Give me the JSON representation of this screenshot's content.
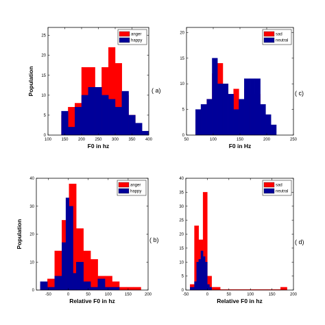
{
  "chart_data": [
    {
      "type": "bar",
      "panel_label": "( a)",
      "xlabel": "F0 in hz",
      "ylabel": "Population",
      "xlim": [
        100,
        400
      ],
      "ylim": [
        0,
        27
      ],
      "xticks": [
        100,
        150,
        200,
        250,
        300,
        350,
        400
      ],
      "yticks": [
        0,
        5,
        10,
        15,
        20,
        25
      ],
      "legend_position": "top-right",
      "series": [
        {
          "name": "anger",
          "color": "#ff0000",
          "bins": [
            [
              140,
              160,
              5
            ],
            [
              160,
              180,
              7
            ],
            [
              180,
              200,
              8
            ],
            [
              200,
              220,
              17
            ],
            [
              220,
              240,
              17
            ],
            [
              240,
              260,
              11
            ],
            [
              260,
              280,
              17
            ],
            [
              280,
              300,
              22
            ],
            [
              300,
              320,
              18
            ],
            [
              320,
              340,
              10
            ],
            [
              340,
              360,
              5
            ]
          ]
        },
        {
          "name": "happy",
          "color": "#000099",
          "bins": [
            [
              140,
              160,
              6
            ],
            [
              160,
              180,
              2
            ],
            [
              180,
              200,
              7
            ],
            [
              200,
              220,
              10
            ],
            [
              220,
              240,
              12
            ],
            [
              240,
              260,
              12
            ],
            [
              260,
              280,
              10
            ],
            [
              280,
              300,
              9
            ],
            [
              300,
              320,
              7
            ],
            [
              320,
              340,
              11
            ],
            [
              340,
              360,
              5
            ],
            [
              360,
              380,
              3
            ],
            [
              380,
              400,
              1
            ]
          ]
        }
      ]
    },
    {
      "type": "bar",
      "panel_label": "( c)",
      "xlabel": "F0 in Hz",
      "ylabel": "",
      "xlim": [
        50,
        250
      ],
      "ylim": [
        0,
        21
      ],
      "xticks": [
        50,
        100,
        150,
        200,
        250
      ],
      "yticks": [
        0,
        5,
        10,
        15,
        20
      ],
      "legend_position": "top-right",
      "series": [
        {
          "name": "sad",
          "color": "#ff0000",
          "bins": [
            [
              67,
              77,
              3
            ],
            [
              77,
              88,
              5
            ],
            [
              88,
              98,
              7
            ],
            [
              98,
              108,
              12
            ],
            [
              108,
              118,
              14
            ],
            [
              118,
              128,
              10
            ],
            [
              128,
              138,
              6
            ],
            [
              138,
              148,
              9
            ],
            [
              148,
              158,
              6
            ],
            [
              158,
              168,
              9
            ],
            [
              168,
              178,
              8
            ],
            [
              178,
              188,
              8
            ],
            [
              188,
              198,
              4
            ]
          ]
        },
        {
          "name": "neutral",
          "color": "#000099",
          "bins": [
            [
              67,
              77,
              5
            ],
            [
              77,
              88,
              6
            ],
            [
              88,
              98,
              7
            ],
            [
              98,
              108,
              15
            ],
            [
              108,
              118,
              10
            ],
            [
              118,
              128,
              10
            ],
            [
              128,
              138,
              8
            ],
            [
              138,
              148,
              5
            ],
            [
              148,
              158,
              7
            ],
            [
              158,
              168,
              11
            ],
            [
              168,
              178,
              11
            ],
            [
              178,
              188,
              11
            ],
            [
              188,
              198,
              6
            ],
            [
              198,
              208,
              4
            ],
            [
              208,
              218,
              2
            ]
          ]
        }
      ]
    },
    {
      "type": "bar",
      "panel_label": "( b)",
      "xlabel": "Relative F0 in hz",
      "ylabel": "Population",
      "xlim": [
        -80,
        200
      ],
      "ylim": [
        0,
        40
      ],
      "xticks": [
        -50,
        0,
        50,
        100,
        150,
        200
      ],
      "yticks": [
        0,
        10,
        20,
        30,
        40
      ],
      "legend_position": "top-right",
      "series": [
        {
          "name": "anger",
          "color": "#ff0000",
          "bins": [
            [
              -70,
              -52,
              2
            ],
            [
              -52,
              -34,
              4
            ],
            [
              -34,
              -16,
              14
            ],
            [
              -16,
              2,
              25
            ],
            [
              2,
              20,
              38
            ],
            [
              20,
              38,
              22
            ],
            [
              38,
              56,
              14
            ],
            [
              56,
              74,
              11
            ],
            [
              74,
              92,
              5
            ],
            [
              92,
              110,
              5
            ],
            [
              110,
              128,
              3
            ],
            [
              128,
              146,
              1
            ],
            [
              146,
              164,
              1
            ],
            [
              164,
              182,
              1
            ]
          ]
        },
        {
          "name": "happy",
          "color": "#000099",
          "bins": [
            [
              -70,
              -52,
              3
            ],
            [
              -52,
              -34,
              1
            ],
            [
              -34,
              -16,
              5
            ],
            [
              -16,
              -6,
              17
            ],
            [
              -6,
              2,
              33
            ],
            [
              2,
              12,
              30
            ],
            [
              12,
              20,
              6
            ],
            [
              20,
              38,
              10
            ],
            [
              38,
              56,
              3
            ],
            [
              56,
              74,
              1
            ],
            [
              74,
              92,
              4
            ],
            [
              92,
              110,
              1
            ],
            [
              110,
              128,
              1
            ]
          ]
        }
      ]
    },
    {
      "type": "bar",
      "panel_label": "( d)",
      "xlabel": "Relative F0 in hz",
      "ylabel": "",
      "xlim": [
        -50,
        200
      ],
      "ylim": [
        0,
        40
      ],
      "xticks": [
        -50,
        0,
        50,
        100,
        150,
        200
      ],
      "yticks": [
        0,
        5,
        10,
        15,
        20,
        25,
        30,
        35,
        40
      ],
      "legend_position": "top-right",
      "series": [
        {
          "name": "sad",
          "color": "#ff0000",
          "bins": [
            [
              -40,
              -30,
              2
            ],
            [
              -30,
              -20,
              23
            ],
            [
              -20,
              -10,
              18
            ],
            [
              -10,
              0,
              35
            ],
            [
              0,
              10,
              5
            ],
            [
              10,
              20,
              1
            ],
            [
              20,
              30,
              1
            ],
            [
              30,
              170,
              0.2
            ],
            [
              170,
              185,
              1
            ]
          ]
        },
        {
          "name": "neutral",
          "color": "#000099",
          "bins": [
            [
              -40,
              -30,
              1
            ],
            [
              -30,
              -25,
              3
            ],
            [
              -25,
              -20,
              10
            ],
            [
              -20,
              -15,
              11
            ],
            [
              -15,
              -10,
              14
            ],
            [
              -10,
              -5,
              12
            ],
            [
              -5,
              0,
              10
            ],
            [
              0,
              5,
              2
            ],
            [
              5,
              10,
              1
            ]
          ]
        }
      ]
    }
  ]
}
